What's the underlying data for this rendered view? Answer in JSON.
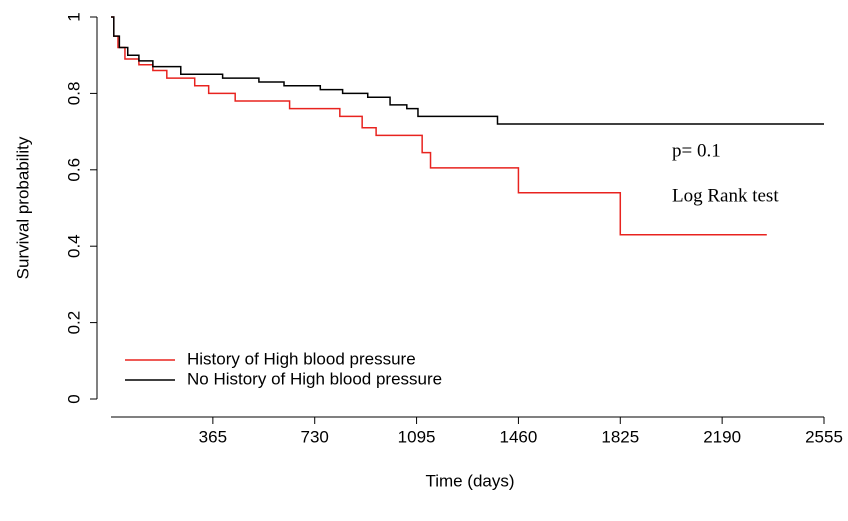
{
  "chart_data": {
    "type": "step",
    "xlabel": "Time (days)",
    "ylabel": "Survival probability",
    "xlim": [
      0,
      2555
    ],
    "xticks": [
      365,
      730,
      1095,
      1460,
      1825,
      2190,
      2555
    ],
    "ylim": [
      0,
      1
    ],
    "yticks": [
      0,
      0.2,
      0.4,
      0.6,
      0.8,
      1
    ],
    "legend": "bottom-left",
    "annotations": [
      "p= 0.1",
      "Log Rank test"
    ],
    "series": [
      {
        "name": "History of High blood pressure",
        "color": "#e8231f",
        "x": [
          0,
          10,
          25,
          50,
          100,
          150,
          200,
          300,
          350,
          445,
          640,
          820,
          900,
          950,
          1115,
          1145,
          1460,
          1825,
          2350
        ],
        "values": [
          1.0,
          0.95,
          0.92,
          0.89,
          0.875,
          0.86,
          0.84,
          0.82,
          0.8,
          0.78,
          0.76,
          0.74,
          0.71,
          0.69,
          0.645,
          0.605,
          0.54,
          0.43,
          0.43
        ]
      },
      {
        "name": "No History of High blood pressure",
        "color": "#000000",
        "x": [
          0,
          10,
          30,
          60,
          100,
          150,
          250,
          400,
          530,
          620,
          750,
          830,
          920,
          1000,
          1060,
          1100,
          1385,
          2555
        ],
        "values": [
          1.0,
          0.95,
          0.92,
          0.9,
          0.885,
          0.87,
          0.85,
          0.84,
          0.83,
          0.82,
          0.81,
          0.8,
          0.79,
          0.77,
          0.76,
          0.74,
          0.72,
          0.72
        ]
      }
    ]
  }
}
